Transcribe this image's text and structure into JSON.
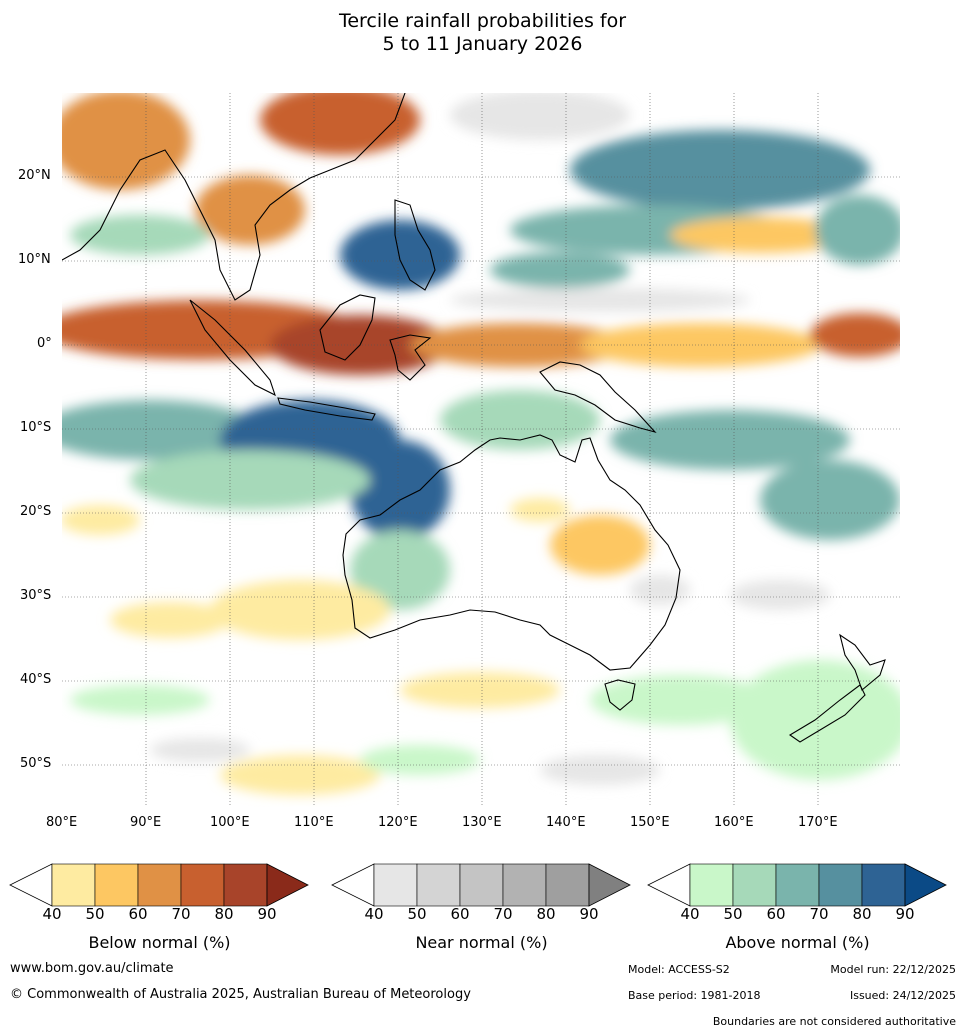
{
  "title_line1": "Tercile rainfall probabilities for",
  "title_line2": "5 to 11 January 2026",
  "map": {
    "lon_labels": [
      "80°E",
      "90°E",
      "100°E",
      "110°E",
      "120°E",
      "130°E",
      "140°E",
      "150°E",
      "160°E",
      "170°E"
    ],
    "lat_labels": [
      "20°N",
      "10°N",
      "0°",
      "10°S",
      "20°S",
      "30°S",
      "40°S",
      "50°S"
    ],
    "lon_range": [
      80,
      180
    ],
    "lat_range": [
      -55,
      30
    ],
    "gridlines": true
  },
  "colorbars": [
    {
      "label": "Below normal (%)",
      "ticks": [
        "40",
        "50",
        "60",
        "70",
        "80",
        "90"
      ],
      "colors": [
        "#ffffff",
        "#feeba1",
        "#fdc762",
        "#e09145",
        "#c8602f",
        "#a8442a",
        "#8a2a1a"
      ]
    },
    {
      "label": "Near normal (%)",
      "ticks": [
        "40",
        "50",
        "60",
        "70",
        "80",
        "90"
      ],
      "colors": [
        "#ffffff",
        "#e6e6e6",
        "#d4d4d4",
        "#c4c4c4",
        "#b2b2b2",
        "#9f9f9f",
        "#808080"
      ]
    },
    {
      "label": "Above normal (%)",
      "ticks": [
        "40",
        "50",
        "60",
        "70",
        "80",
        "90"
      ],
      "colors": [
        "#ffffff",
        "#c9f7c9",
        "#a6d9b9",
        "#7ab4ac",
        "#56909f",
        "#2e6394",
        "#0b4a86"
      ]
    }
  ],
  "footer": {
    "url": "www.bom.gov.au/climate",
    "copyright": "© Commonwealth of Australia 2025, Australian Bureau of Meteorology",
    "model": "Model: ACCESS-S2",
    "model_run": "Model run: 22/12/2025",
    "base_period": "Base period: 1981-2018",
    "issued": "Issued: 24/12/2025",
    "disclaimer": "Boundaries are not considered authoritative"
  }
}
